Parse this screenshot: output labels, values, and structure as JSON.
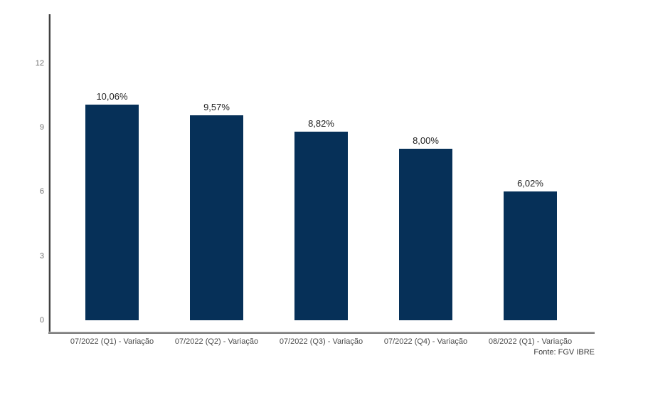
{
  "chart_data": {
    "type": "bar",
    "categories": [
      "07/2022 (Q1) - Variação",
      "07/2022 (Q2) - Variação",
      "07/2022 (Q3) - Variação",
      "07/2022 (Q4) - Variação",
      "08/2022 (Q1) - Variação"
    ],
    "values": [
      10.06,
      9.57,
      8.82,
      8.0,
      6.02
    ],
    "value_labels": [
      "10,06%",
      "9,57%",
      "8,82%",
      "8,00%",
      "6,02%"
    ],
    "yticks": [
      0,
      3,
      6,
      9,
      12
    ],
    "ylim": [
      0,
      14.3
    ],
    "title": "",
    "xlabel": "",
    "ylabel": "",
    "grid": false,
    "legend": "none",
    "bar_color": "#063058",
    "axis_color": "#404040",
    "baseline_color": "#757575",
    "source": "Fonte: FGV IBRE"
  }
}
